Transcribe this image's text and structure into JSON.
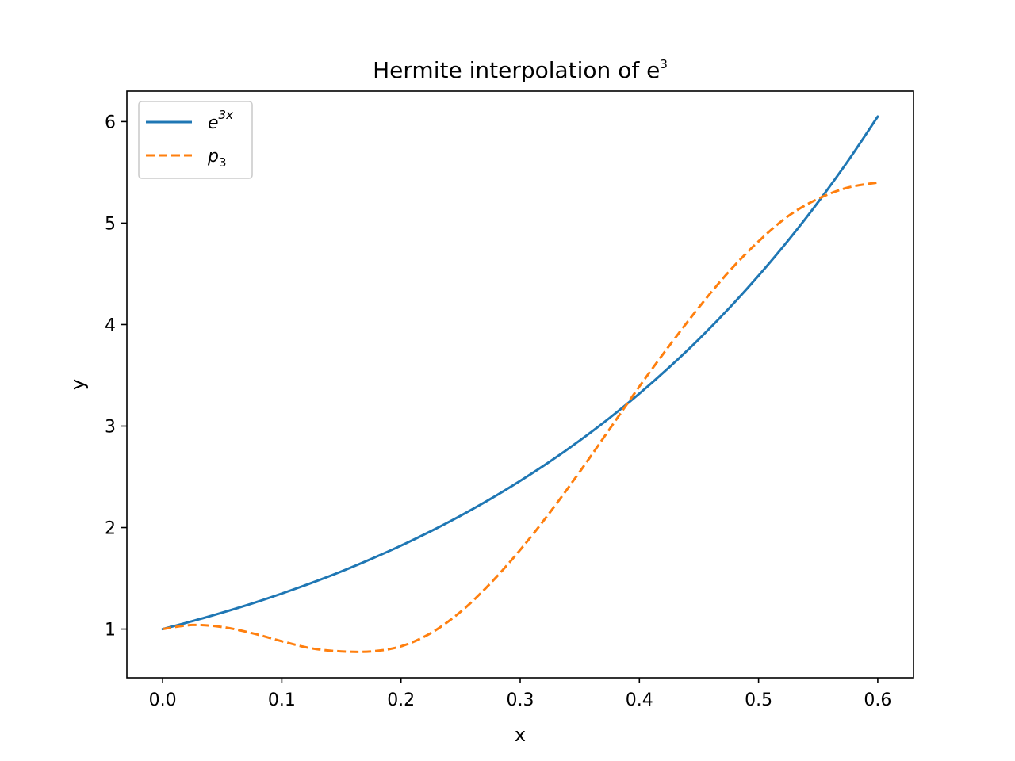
{
  "chart_data": {
    "type": "line",
    "title": "Hermite interpolation of e",
    "title_superscript": "3",
    "xlabel": "x",
    "ylabel": "y",
    "xlim": [
      -0.03,
      0.63
    ],
    "ylim": [
      0.52,
      6.3
    ],
    "xticks": [
      0.0,
      0.1,
      0.2,
      0.3,
      0.4,
      0.5,
      0.6
    ],
    "xtick_labels": [
      "0.0",
      "0.1",
      "0.2",
      "0.3",
      "0.4",
      "0.5",
      "0.6"
    ],
    "yticks": [
      1,
      2,
      3,
      4,
      5,
      6
    ],
    "ytick_labels": [
      "1",
      "2",
      "3",
      "4",
      "5",
      "6"
    ],
    "grid": false,
    "legend_position": "top-left",
    "x": [
      0.0,
      0.025,
      0.05,
      0.075,
      0.1,
      0.125,
      0.15,
      0.175,
      0.2,
      0.225,
      0.25,
      0.275,
      0.3,
      0.325,
      0.35,
      0.375,
      0.4,
      0.425,
      0.45,
      0.475,
      0.5,
      0.525,
      0.55,
      0.575,
      0.6
    ],
    "series": [
      {
        "name": "e",
        "name_superscript": "3x",
        "color": "#1f77b4",
        "style": "solid",
        "values": [
          1.0,
          1.078,
          1.162,
          1.252,
          1.35,
          1.455,
          1.568,
          1.691,
          1.822,
          1.964,
          2.117,
          2.282,
          2.46,
          2.651,
          2.858,
          3.08,
          3.32,
          3.579,
          3.857,
          4.158,
          4.482,
          4.831,
          5.207,
          5.612,
          6.05
        ]
      },
      {
        "name": "p",
        "name_subscript": "3",
        "color": "#ff7f0e",
        "style": "dashed",
        "values": [
          1.0,
          1.04,
          1.02,
          0.96,
          0.88,
          0.81,
          0.78,
          0.78,
          0.83,
          0.96,
          1.17,
          1.45,
          1.78,
          2.15,
          2.55,
          2.97,
          3.39,
          3.79,
          4.17,
          4.52,
          4.82,
          5.07,
          5.24,
          5.35,
          5.4
        ]
      }
    ]
  }
}
